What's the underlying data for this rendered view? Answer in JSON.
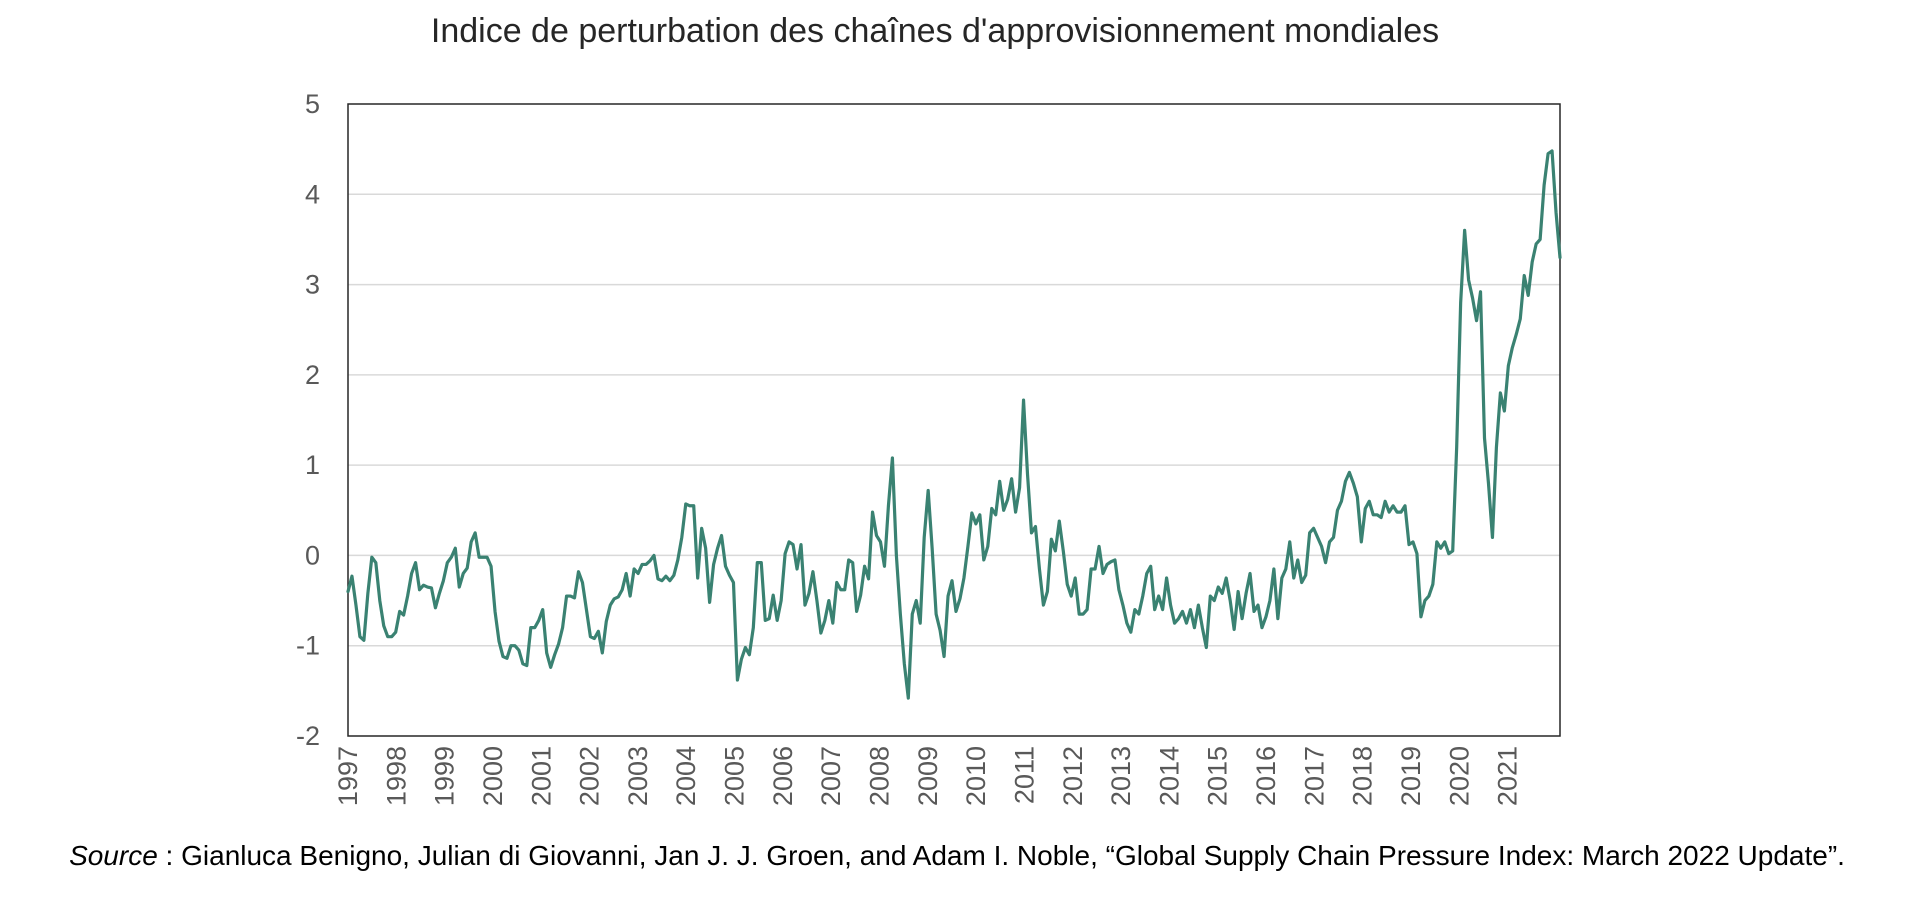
{
  "chart_data": {
    "type": "line",
    "title": "Indice de perturbation des chaînes d'approvisionnement mondiales",
    "xlabel": "",
    "ylabel": "",
    "ylim": [
      -2,
      5
    ],
    "yticks": [
      -2,
      -1,
      0,
      1,
      2,
      3,
      4,
      5
    ],
    "xticks": [
      "1997",
      "1998",
      "1999",
      "2000",
      "2001",
      "2002",
      "2003",
      "2004",
      "2005",
      "2006",
      "2007",
      "2008",
      "2009",
      "2010",
      "2011",
      "2012",
      "2013",
      "2014",
      "2015",
      "2016",
      "2017",
      "2018",
      "2019",
      "2020",
      "2021"
    ],
    "x_start": "1997-01",
    "x_end": "2022-02",
    "grid": true,
    "line_color": "#3a8272",
    "series": [
      {
        "values": [
          -0.4,
          -0.23,
          -0.55,
          -0.9,
          -0.94,
          -0.42,
          -0.02,
          -0.08,
          -0.5,
          -0.78,
          -0.9,
          -0.9,
          -0.85,
          -0.62,
          -0.66,
          -0.45,
          -0.2,
          -0.08,
          -0.38,
          -0.33,
          -0.35,
          -0.36,
          -0.58,
          -0.42,
          -0.28,
          -0.08,
          -0.02,
          0.08,
          -0.35,
          -0.2,
          -0.14,
          0.15,
          0.25,
          -0.02,
          -0.02,
          -0.02,
          -0.12,
          -0.62,
          -0.95,
          -1.12,
          -1.14,
          -1.0,
          -1.0,
          -1.05,
          -1.2,
          -1.22,
          -0.8,
          -0.8,
          -0.72,
          -0.6,
          -1.08,
          -1.24,
          -1.1,
          -0.98,
          -0.8,
          -0.45,
          -0.45,
          -0.47,
          -0.18,
          -0.3,
          -0.6,
          -0.9,
          -0.92,
          -0.84,
          -1.08,
          -0.73,
          -0.55,
          -0.48,
          -0.46,
          -0.38,
          -0.2,
          -0.45,
          -0.15,
          -0.2,
          -0.1,
          -0.1,
          -0.06,
          0.0,
          -0.26,
          -0.28,
          -0.23,
          -0.28,
          -0.22,
          -0.05,
          0.2,
          0.57,
          0.55,
          0.55,
          -0.25,
          0.3,
          0.08,
          -0.52,
          -0.1,
          0.08,
          0.22,
          -0.12,
          -0.22,
          -0.3,
          -1.38,
          -1.15,
          -1.02,
          -1.1,
          -0.8,
          -0.08,
          -0.08,
          -0.72,
          -0.7,
          -0.44,
          -0.72,
          -0.5,
          0.02,
          0.15,
          0.12,
          -0.15,
          0.12,
          -0.55,
          -0.42,
          -0.18,
          -0.5,
          -0.86,
          -0.72,
          -0.5,
          -0.75,
          -0.3,
          -0.38,
          -0.38,
          -0.05,
          -0.08,
          -0.62,
          -0.44,
          -0.12,
          -0.26,
          0.48,
          0.22,
          0.15,
          -0.12,
          0.55,
          1.08,
          0.0,
          -0.65,
          -1.2,
          -1.58,
          -0.65,
          -0.5,
          -0.75,
          0.2,
          0.72,
          0.08,
          -0.65,
          -0.83,
          -1.12,
          -0.45,
          -0.28,
          -0.62,
          -0.48,
          -0.25,
          0.1,
          0.47,
          0.35,
          0.45,
          -0.05,
          0.1,
          0.52,
          0.45,
          0.82,
          0.5,
          0.62,
          0.85,
          0.48,
          0.75,
          1.72,
          0.9,
          0.25,
          0.32,
          -0.15,
          -0.55,
          -0.4,
          0.18,
          0.05,
          0.38,
          0.05,
          -0.32,
          -0.45,
          -0.25,
          -0.65,
          -0.65,
          -0.6,
          -0.15,
          -0.15,
          0.1,
          -0.2,
          -0.1,
          -0.07,
          -0.05,
          -0.38,
          -0.55,
          -0.75,
          -0.85,
          -0.6,
          -0.65,
          -0.45,
          -0.2,
          -0.12,
          -0.6,
          -0.45,
          -0.6,
          -0.25,
          -0.55,
          -0.75,
          -0.7,
          -0.62,
          -0.75,
          -0.6,
          -0.8,
          -0.55,
          -0.8,
          -1.02,
          -0.45,
          -0.5,
          -0.35,
          -0.42,
          -0.25,
          -0.5,
          -0.82,
          -0.4,
          -0.7,
          -0.42,
          -0.2,
          -0.62,
          -0.55,
          -0.8,
          -0.68,
          -0.5,
          -0.15,
          -0.7,
          -0.25,
          -0.15,
          0.15,
          -0.25,
          -0.05,
          -0.3,
          -0.22,
          0.25,
          0.3,
          0.2,
          0.1,
          -0.08,
          0.15,
          0.2,
          0.5,
          0.6,
          0.82,
          0.92,
          0.8,
          0.65,
          0.15,
          0.52,
          0.6,
          0.45,
          0.45,
          0.42,
          0.6,
          0.48,
          0.55,
          0.48,
          0.48,
          0.55,
          0.12,
          0.15,
          0.02,
          -0.68,
          -0.5,
          -0.45,
          -0.32,
          0.15,
          0.08,
          0.15,
          0.02,
          0.05,
          1.2,
          2.8,
          3.6,
          3.05,
          2.85,
          2.6,
          2.92,
          1.3,
          0.8,
          0.2,
          1.2,
          1.8,
          1.6,
          2.1,
          2.3,
          2.45,
          2.62,
          3.1,
          2.88,
          3.25,
          3.45,
          3.5,
          4.1,
          4.45,
          4.48,
          3.8,
          3.3
        ]
      }
    ]
  },
  "caption": {
    "source_label": "Source",
    "text": " : Gianluca Benigno, Julian di Giovanni, Jan J. J. Groen, and Adam I. Noble, “Global Supply Chain Pressure Index: March 2022 Update”."
  }
}
